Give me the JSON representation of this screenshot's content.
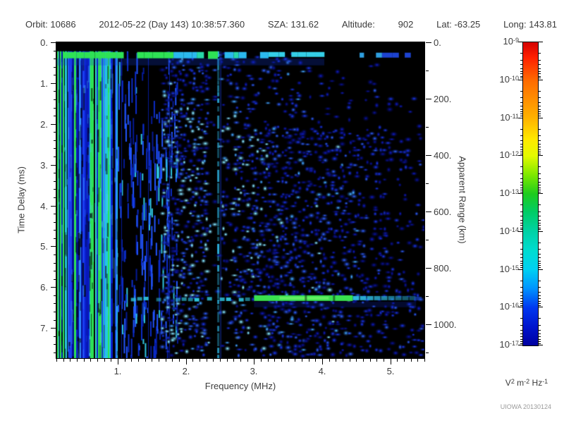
{
  "header": {
    "orbit_label": "Orbit:",
    "orbit_value": "10686",
    "datetime": "2012-05-22 (Day 143) 10:38:57.360",
    "sza_label": "SZA:",
    "sza_value": "131.62",
    "altitude_label": "Altitude:",
    "altitude_value": "902",
    "lat_label": "Lat:",
    "lat_value": "-63.25",
    "long_label": "Long:",
    "long_value": "143.81"
  },
  "credit": "UIOWA 20130124",
  "chart_data": {
    "type": "heatmap",
    "title": "",
    "xlabel": "Frequency (MHz)",
    "ylabel_left": "Time Delay (ms)",
    "ylabel_right": "Apparent Range (km)",
    "x_range_mhz": [
      0.1,
      5.5
    ],
    "x_major_ticks": [
      1,
      2,
      3,
      4,
      5
    ],
    "x_tick_labels": [
      "1.",
      "2.",
      "3.",
      "4.",
      "5."
    ],
    "x_minor_step_mhz": 0.1,
    "y_left_range_ms": [
      0,
      7.74
    ],
    "y_left_major_ticks": [
      0,
      1,
      2,
      3,
      4,
      5,
      6,
      7
    ],
    "y_left_tick_labels": [
      "0.",
      "1.",
      "2.",
      "3.",
      "4.",
      "5.",
      "6.",
      "7."
    ],
    "y_left_minor_step_ms": 0.2,
    "y_right_range_km": [
      0,
      1121
    ],
    "y_right_major_ticks": [
      0,
      200,
      400,
      600,
      800,
      1000
    ],
    "y_right_tick_labels": [
      "0.",
      "200.",
      "400.",
      "600.",
      "800.",
      "1000."
    ],
    "y_right_minor_step_km": 100,
    "grid": false,
    "colorbar": {
      "scale": "log",
      "range_top": "1e-9",
      "range_bottom": "1e-17",
      "base": "10",
      "tick_exponents": [
        "-9",
        "-10",
        "-11",
        "-12",
        "-13",
        "-14",
        "-15",
        "-16",
        "-17"
      ],
      "unit_parts": [
        [
          "V",
          "2"
        ],
        [
          "m",
          "-2"
        ],
        [
          "Hz",
          "-1"
        ]
      ],
      "gradient_stops": [
        [
          0,
          "#d40000"
        ],
        [
          0.05,
          "#ff2000"
        ],
        [
          0.125,
          "#ff6a00"
        ],
        [
          0.25,
          "#ffb200"
        ],
        [
          0.32,
          "#ffe900"
        ],
        [
          0.375,
          "#e4fa00"
        ],
        [
          0.44,
          "#7ae800"
        ],
        [
          0.5,
          "#1ecc1e"
        ],
        [
          0.56,
          "#00cc66"
        ],
        [
          0.625,
          "#00d2a6"
        ],
        [
          0.69,
          "#00dcd2"
        ],
        [
          0.75,
          "#00d0f2"
        ],
        [
          0.81,
          "#0096ff"
        ],
        [
          0.875,
          "#0038f0"
        ],
        [
          0.94,
          "#0014cc"
        ],
        [
          1,
          "#0000a0"
        ]
      ]
    },
    "features": {
      "background": "#000000",
      "transmit_blackout_ms": [
        0,
        0.22
      ],
      "ionosphere_echo_band_ms": 0.3,
      "surface_echo_band_ms": 6.2,
      "surface_echo_green_mhz": [
        3.0,
        4.45
      ],
      "surface_echo_extent_mhz": [
        1.1,
        5.35
      ],
      "interference_line_mhz": 2.47,
      "low_freq_noise_below_mhz": 1.0,
      "palette": {
        "deep_blue": "#081090",
        "mid_blue": "#0d18b4",
        "blue": "#1731dd",
        "bright_blue": "#2b5bf2",
        "light_blue": "#41a6ff",
        "pale_cyan": "#86e8ff",
        "cyan": "#2fc6e0",
        "green": "#3ae24f",
        "bright_green": "#2ee255",
        "teal": "#35e0c0"
      },
      "seed": 20130124
    }
  }
}
